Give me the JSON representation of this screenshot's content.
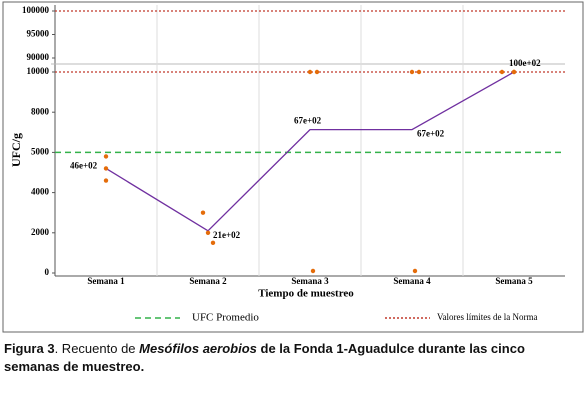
{
  "chart_data": {
    "type": "line",
    "x_label": "Tiempo de muestreo",
    "y_label": "UFC/g",
    "categories": [
      "Semana 1",
      "Semana 2",
      "Semana 3",
      "Semana 4",
      "Semana 5"
    ],
    "ylim": [
      0,
      100000
    ],
    "yticks": [
      0,
      2000,
      4000,
      5000,
      8000,
      10000,
      90000,
      95000,
      100000
    ],
    "axis_break": [
      10000,
      90000
    ],
    "grid": true,
    "line": {
      "color": "#7030a0",
      "values": [
        4600,
        2100,
        6700,
        6700,
        10000
      ],
      "value_labels": [
        "46e+02",
        "21e+02",
        "67e+02",
        "67e+02",
        "100e+02"
      ]
    },
    "points": {
      "color": "#e46c0a",
      "values": [
        [
          4900,
          4600,
          4300
        ],
        [
          3000,
          2000,
          1500
        ],
        [
          10000,
          10000,
          100
        ],
        [
          10000,
          10000,
          100
        ],
        [
          10000,
          10000,
          10000
        ]
      ]
    },
    "reference_lines": [
      {
        "name": "UFC Promedio",
        "color": "#33b24a",
        "style": "dashed",
        "values": [
          5000
        ]
      },
      {
        "name": "Valores límites de la Norma",
        "color": "#c0392b",
        "style": "dotted",
        "values": [
          10000,
          100000
        ]
      }
    ]
  },
  "caption": {
    "label": "Figura 3",
    "text_before": ". Recuento de ",
    "italic": "Mesófilos aerobios",
    "text_after": " de la Fonda 1-Aguadulce durante las cinco semanas de muestreo."
  }
}
